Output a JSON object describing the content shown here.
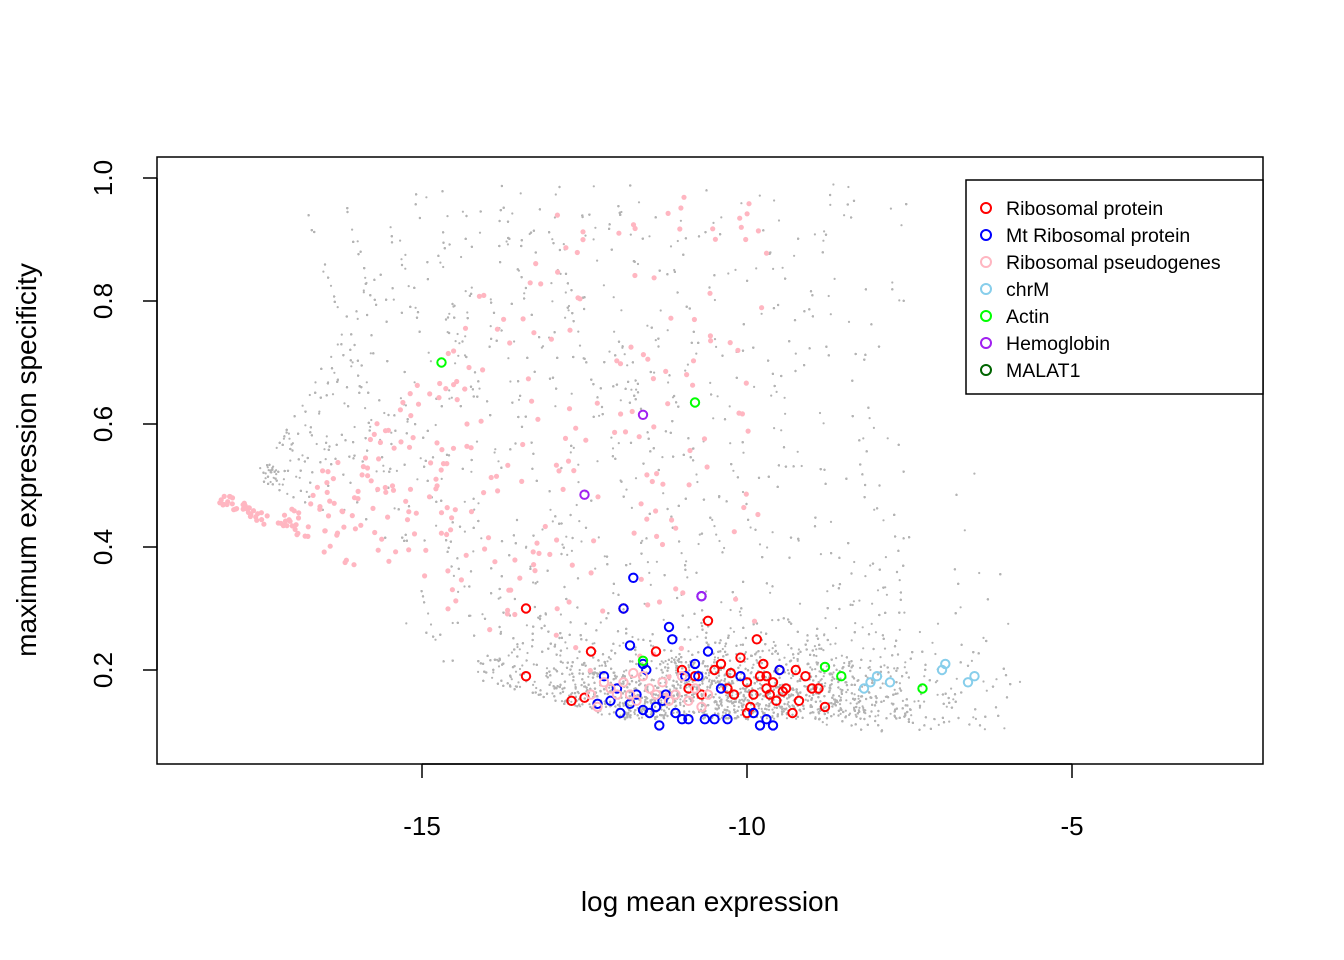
{
  "chart_data": {
    "type": "scatter",
    "xlabel": "log mean expression",
    "ylabel": "maximum expression specificity",
    "xlim": [
      -19,
      2.5
    ],
    "ylim": [
      0.07,
      1.03
    ],
    "x_ticks": [
      -15,
      -10,
      -5
    ],
    "x_tick_labels": [
      "-15",
      "-10",
      "-5"
    ],
    "y_ticks": [
      0.2,
      0.4,
      0.6,
      0.8,
      1.0
    ],
    "y_tick_labels": [
      "0.2",
      "0.4",
      "0.6",
      "0.8",
      "1.0"
    ],
    "grid": false,
    "legend_position": "top-right",
    "background_points": {
      "color": "#b3b3b3",
      "description_count": 9000
    },
    "series": [
      {
        "name": "Ribosomal protein",
        "color": "#ff0000",
        "points": [
          [
            -13.4,
            0.3
          ],
          [
            -13.4,
            0.19
          ],
          [
            -12.7,
            0.15
          ],
          [
            -12.5,
            0.155
          ],
          [
            -12.4,
            0.23
          ],
          [
            -11.9,
            0.3
          ],
          [
            -11.4,
            0.23
          ],
          [
            -11.0,
            0.2
          ],
          [
            -10.9,
            0.17
          ],
          [
            -10.8,
            0.19
          ],
          [
            -10.7,
            0.16
          ],
          [
            -10.6,
            0.28
          ],
          [
            -10.5,
            0.2
          ],
          [
            -10.4,
            0.21
          ],
          [
            -10.3,
            0.17
          ],
          [
            -10.2,
            0.16
          ],
          [
            -10.1,
            0.22
          ],
          [
            -10.0,
            0.18
          ],
          [
            -9.95,
            0.14
          ],
          [
            -9.9,
            0.16
          ],
          [
            -9.85,
            0.25
          ],
          [
            -9.8,
            0.19
          ],
          [
            -9.75,
            0.21
          ],
          [
            -9.7,
            0.17
          ],
          [
            -9.65,
            0.16
          ],
          [
            -9.6,
            0.18
          ],
          [
            -9.55,
            0.15
          ],
          [
            -9.5,
            0.2
          ],
          [
            -9.4,
            0.17
          ],
          [
            -9.3,
            0.13
          ],
          [
            -9.25,
            0.2
          ],
          [
            -9.2,
            0.15
          ],
          [
            -9.1,
            0.19
          ],
          [
            -9.0,
            0.17
          ],
          [
            -8.9,
            0.17
          ],
          [
            -8.8,
            0.14
          ],
          [
            -10.0,
            0.13
          ],
          [
            -9.7,
            0.19
          ],
          [
            -9.45,
            0.165
          ],
          [
            -10.25,
            0.195
          ]
        ]
      },
      {
        "name": "Mt Ribosomal protein",
        "color": "#0000ff",
        "points": [
          [
            -12.2,
            0.19
          ],
          [
            -12.1,
            0.15
          ],
          [
            -12.0,
            0.17
          ],
          [
            -11.95,
            0.13
          ],
          [
            -11.9,
            0.3
          ],
          [
            -11.8,
            0.24
          ],
          [
            -11.75,
            0.35
          ],
          [
            -11.7,
            0.16
          ],
          [
            -11.6,
            0.21
          ],
          [
            -11.55,
            0.2
          ],
          [
            -11.5,
            0.13
          ],
          [
            -11.4,
            0.14
          ],
          [
            -11.35,
            0.11
          ],
          [
            -11.3,
            0.15
          ],
          [
            -11.25,
            0.16
          ],
          [
            -11.2,
            0.27
          ],
          [
            -11.15,
            0.25
          ],
          [
            -11.1,
            0.13
          ],
          [
            -11.0,
            0.12
          ],
          [
            -10.95,
            0.19
          ],
          [
            -10.9,
            0.12
          ],
          [
            -10.8,
            0.21
          ],
          [
            -10.75,
            0.19
          ],
          [
            -10.7,
            0.32
          ],
          [
            -10.65,
            0.12
          ],
          [
            -10.6,
            0.23
          ],
          [
            -10.5,
            0.12
          ],
          [
            -10.4,
            0.17
          ],
          [
            -10.3,
            0.12
          ],
          [
            -10.1,
            0.19
          ],
          [
            -9.9,
            0.13
          ],
          [
            -9.8,
            0.11
          ],
          [
            -9.7,
            0.12
          ],
          [
            -9.6,
            0.11
          ],
          [
            -9.5,
            0.2
          ],
          [
            -11.6,
            0.135
          ],
          [
            -12.3,
            0.145
          ],
          [
            -11.8,
            0.145
          ]
        ]
      },
      {
        "name": "Ribosomal pseudogenes",
        "color": "#ffb6c1",
        "points": [
          [
            -12.2,
            0.18
          ],
          [
            -12.1,
            0.17
          ],
          [
            -12.0,
            0.16
          ],
          [
            -11.9,
            0.18
          ],
          [
            -11.8,
            0.16
          ],
          [
            -11.7,
            0.15
          ],
          [
            -11.6,
            0.19
          ],
          [
            -11.5,
            0.17
          ],
          [
            -11.4,
            0.16
          ],
          [
            -11.3,
            0.18
          ],
          [
            -11.2,
            0.15
          ],
          [
            -11.1,
            0.16
          ],
          [
            -11.0,
            0.19
          ],
          [
            -10.9,
            0.15
          ],
          [
            -10.8,
            0.17
          ],
          [
            -10.7,
            0.14
          ],
          [
            -10.6,
            0.16
          ],
          [
            -12.4,
            0.16
          ],
          [
            -12.3,
            0.14
          ],
          [
            -11.75,
            0.195
          ]
        ]
      },
      {
        "name": "chrM",
        "color": "#87ceeb",
        "points": [
          [
            -8.2,
            0.17
          ],
          [
            -8.1,
            0.18
          ],
          [
            -8.0,
            0.19
          ],
          [
            -7.8,
            0.18
          ],
          [
            -7.0,
            0.2
          ],
          [
            -6.95,
            0.21
          ],
          [
            -6.6,
            0.18
          ],
          [
            -6.5,
            0.19
          ]
        ]
      },
      {
        "name": "Actin",
        "color": "#00ff00",
        "points": [
          [
            -14.7,
            0.7
          ],
          [
            -10.8,
            0.635
          ],
          [
            -11.6,
            0.215
          ],
          [
            -8.8,
            0.205
          ],
          [
            -8.55,
            0.19
          ],
          [
            -7.3,
            0.17
          ]
        ]
      },
      {
        "name": "Hemoglobin",
        "color": "#a020f0",
        "points": [
          [
            -11.6,
            0.615
          ],
          [
            -12.5,
            0.485
          ],
          [
            -10.7,
            0.32
          ]
        ]
      },
      {
        "name": "MALAT1",
        "color": "#006400",
        "points": []
      }
    ]
  }
}
